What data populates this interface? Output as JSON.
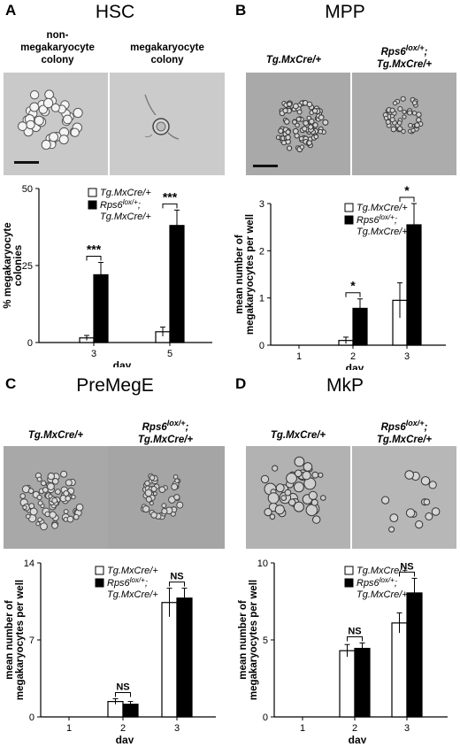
{
  "panels": [
    {
      "letter": "A",
      "title": "HSC",
      "labels": [
        [
          "non-",
          "megakaryocyte",
          "colony"
        ],
        [
          "megakaryocyte",
          "colony"
        ]
      ],
      "images": [
        {
          "icon": "megakaryocyte-negative-colony-micrograph"
        },
        {
          "icon": "megakaryocyte-colony-micrograph"
        }
      ]
    },
    {
      "letter": "B",
      "title": "MPP",
      "labels": [
        [
          "Tg.MxCre/+"
        ],
        [
          "Rps6lox/+;",
          "Tg.MxCre/+"
        ]
      ],
      "images": [
        {
          "icon": "control-colony-micrograph"
        },
        {
          "icon": "rps6-colony-micrograph"
        }
      ]
    },
    {
      "letter": "C",
      "title": "PreMegE",
      "labels": [
        [
          "Tg.MxCre/+"
        ],
        [
          "Rps6lox/+;",
          "Tg.MxCre/+"
        ]
      ],
      "images": [
        {
          "icon": "control-colony-micrograph"
        },
        {
          "icon": "rps6-colony-micrograph"
        }
      ]
    },
    {
      "letter": "D",
      "title": "MkP",
      "labels": [
        [
          "Tg.MxCre/+"
        ],
        [
          "Rps6lox/+;",
          "Tg.MxCre/+"
        ]
      ],
      "images": [
        {
          "icon": "control-colony-micrograph"
        },
        {
          "icon": "rps6-colony-micrograph"
        }
      ]
    }
  ],
  "chart_data": [
    {
      "type": "bar",
      "xlabel": "day",
      "ylabel": "% megakaryocyte colonies",
      "ylim": [
        0,
        50
      ],
      "yticks": [
        0,
        25,
        50
      ],
      "categories": [
        "3",
        "5"
      ],
      "series": [
        {
          "name": "Tg.MxCre/+",
          "values": [
            1.5,
            3.5
          ],
          "errors": [
            0.8,
            1.5
          ],
          "color": "#ffffff"
        },
        {
          "name": "Rps6lox/+; Tg.MxCre/+",
          "values": [
            22,
            38
          ],
          "errors": [
            4,
            5
          ],
          "color": "#000000"
        }
      ],
      "annotations": [
        {
          "category": "3",
          "text": "***"
        },
        {
          "category": "5",
          "text": "***"
        }
      ],
      "legend_position": "top-left",
      "grid": false
    },
    {
      "type": "bar",
      "xlabel": "day",
      "ylabel": "mean number of megakaryocytes per well",
      "ylim": [
        0,
        3
      ],
      "yticks": [
        0,
        1,
        2,
        3
      ],
      "categories": [
        "1",
        "2",
        "3"
      ],
      "series": [
        {
          "name": "Tg.MxCre/+",
          "values": [
            0,
            0.1,
            0.95
          ],
          "errors": [
            0,
            0.07,
            0.37
          ],
          "color": "#ffffff"
        },
        {
          "name": "Rps6lox/+; Tg.MxCre/+",
          "values": [
            0,
            0.78,
            2.55
          ],
          "errors": [
            0,
            0.2,
            0.45
          ],
          "color": "#000000"
        }
      ],
      "annotations": [
        {
          "category": "2",
          "text": "*"
        },
        {
          "category": "3",
          "text": "*"
        }
      ],
      "legend_position": "top-left",
      "grid": false
    },
    {
      "type": "bar",
      "xlabel": "day",
      "ylabel": "mean number of megakaryocytes per well",
      "ylim": [
        0,
        14
      ],
      "yticks": [
        0,
        7,
        14
      ],
      "categories": [
        "1",
        "2",
        "3"
      ],
      "series": [
        {
          "name": "Tg.MxCre/+",
          "values": [
            0,
            1.4,
            10.4
          ],
          "errors": [
            0,
            0.25,
            1.3
          ],
          "color": "#ffffff"
        },
        {
          "name": "Rps6lox/+; Tg.MxCre/+",
          "values": [
            0,
            1.15,
            10.8
          ],
          "errors": [
            0,
            0.25,
            0.9
          ],
          "color": "#000000"
        }
      ],
      "annotations": [
        {
          "category": "2",
          "text": "NS"
        },
        {
          "category": "3",
          "text": "NS"
        }
      ],
      "legend_position": "top-left",
      "grid": false
    },
    {
      "type": "bar",
      "xlabel": "day",
      "ylabel": "mean number of megakaryocytes per well",
      "ylim": [
        0,
        10
      ],
      "yticks": [
        0,
        5,
        10
      ],
      "categories": [
        "1",
        "2",
        "3"
      ],
      "series": [
        {
          "name": "Tg.MxCre/+",
          "values": [
            0,
            4.3,
            6.1
          ],
          "errors": [
            0,
            0.4,
            0.65
          ],
          "color": "#ffffff"
        },
        {
          "name": "Rps6lox/+; Tg.MxCre/+",
          "values": [
            0,
            4.45,
            8.05
          ],
          "errors": [
            0,
            0.35,
            0.95
          ],
          "color": "#000000"
        }
      ],
      "annotations": [
        {
          "category": "2",
          "text": "NS"
        },
        {
          "category": "3",
          "text": "NS"
        }
      ],
      "legend_position": "top-left",
      "grid": false
    }
  ]
}
